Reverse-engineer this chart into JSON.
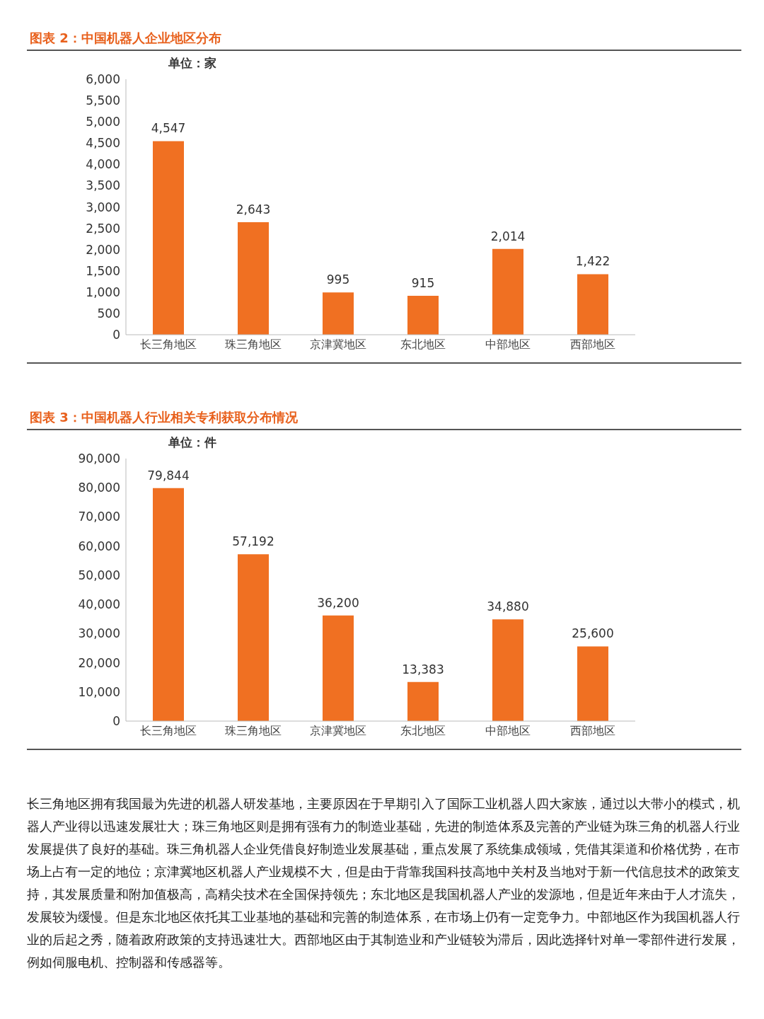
{
  "chart_data": [
    {
      "type": "bar",
      "title": "图表 2：中国机器人企业地区分布",
      "categories": [
        "长三角地区",
        "珠三角地区",
        "京津冀地区",
        "东北地区",
        "中部地区",
        "西部地区"
      ],
      "values": [
        4547,
        2643,
        995,
        915,
        2014,
        1422
      ],
      "value_labels": [
        "4,547",
        "2,643",
        "995",
        "915",
        "2,014",
        "1,422"
      ],
      "color": "#f07022",
      "ylim": [
        0,
        6000
      ],
      "yticks": [
        0,
        {
          "value": 500,
          "label": "500"
        },
        {
          "value": 1000,
          "label": "1,000"
        },
        {
          "value": 1500,
          "label": "1,500"
        },
        {
          "value": 2000,
          "label": "2,000"
        },
        {
          "value": 2500,
          "label": "2,500"
        },
        {
          "value": 3000,
          "label": "3,000"
        },
        {
          "value": 3500,
          "label": "3,500"
        },
        {
          "value": 4000,
          "label": "4,000"
        },
        {
          "value": 4500,
          "label": "4,500"
        },
        {
          "value": 5000,
          "label": "5,000"
        },
        {
          "value": 5500,
          "label": "5,500"
        },
        {
          "value": 6000,
          "label": "6,000"
        }
      ],
      "grid": false,
      "annotations": [
        "单位：家"
      ]
    },
    {
      "type": "bar",
      "title": "图表 3：中国机器人行业相关专利获取分布情况",
      "categories": [
        "长三角地区",
        "珠三角地区",
        "京津冀地区",
        "东北地区",
        "中部地区",
        "西部地区"
      ],
      "values": [
        79844,
        57192,
        36200,
        13383,
        34880,
        25600
      ],
      "value_labels": [
        "79,844",
        "57,192",
        "36,200",
        "13,383",
        "34,880",
        "25,600"
      ],
      "color": "#f07022",
      "ylim": [
        0,
        90000
      ],
      "yticks": [
        0,
        {
          "value": 10000,
          "label": "10,000"
        },
        {
          "value": 20000,
          "label": "20,000"
        },
        {
          "value": 30000,
          "label": "30,000"
        },
        {
          "value": 40000,
          "label": "40,000"
        },
        {
          "value": 50000,
          "label": "50,000"
        },
        {
          "value": 60000,
          "label": "60,000"
        },
        {
          "value": 70000,
          "label": "70,000"
        },
        {
          "value": 80000,
          "label": "80,000"
        },
        {
          "value": 90000,
          "label": "90,000"
        }
      ],
      "grid": false,
      "annotations": [
        "单位：件",
        "长三角地区拥有我国最为先进的机器人研发基地，主要原因在于早期引入了国际工业机器人四大家族，通过以大带小的模式，机器人产业得以迅速发展壮大；珠三角地区则是拥有强有力的制造业基础，先进的制造体系及完善的产业链为珠三角的机器人行业发展提供了良好的基础。珠三角机器人企业凭借良好制造业发展基础，重点发展了系统集成领域，凭借其渠道和价格优势，在市场上占有一定的地位；京津冀地区机器人产业规模不大，但是由于背靠我国科技高地中关村及当地对于新一代信息技术的政策支持，其发展质量和附加值极高，高精尖技术在全国保持领先；东北地区是我国机器人产业的发源地，但是近年来由于人才流失，发展较为缓慢。但是东北地区依托其工业基地的基础和完善的制造体系，在市场上仍有一定竞争力。中部地区作为我国机器人行业的后起之秀，随着政府政策的支持迅速壮大。西部地区由于其制造业和产业链较为滞后，因此选择针对单一零部件进行发展，例如伺服电机、控制器和传感器等。"
      ]
    }
  ]
}
